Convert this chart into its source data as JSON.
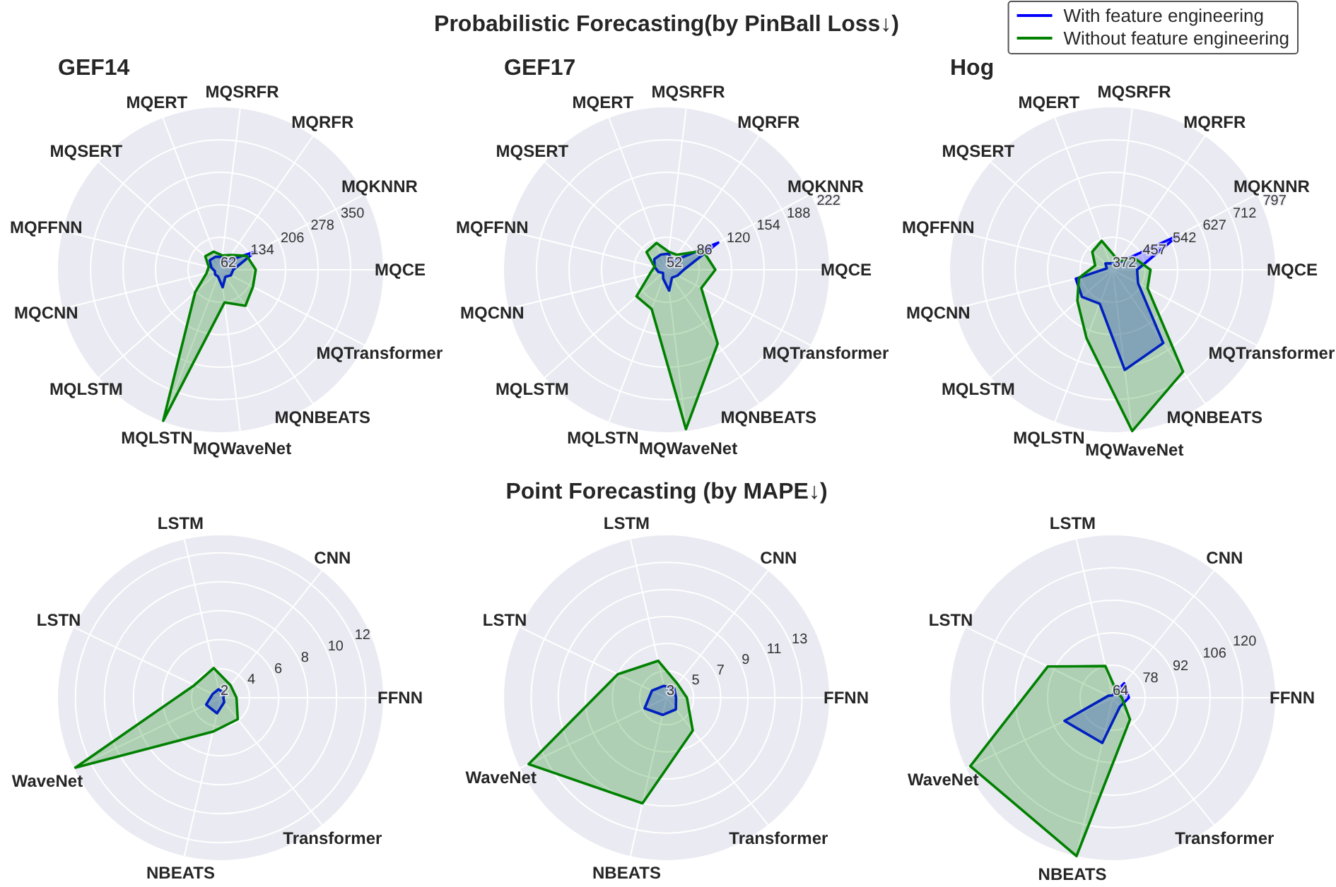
{
  "chart_data": [
    {
      "type": "radar",
      "subtitle": "GEF14",
      "categories": [
        "MQSRFR",
        "MQRFR",
        "MQKNNR",
        "MQCE",
        "MQTransformer",
        "MQNBEATS",
        "MQWaveNet",
        "MQLSTN",
        "MQLSTM",
        "MQCNN",
        "MQFFNN",
        "MQSERT",
        "MQERT"
      ],
      "series": [
        {
          "color": "#0000ff",
          "values": [
            91,
            85,
            150,
            90,
            88,
            81,
            101,
            78,
            78,
            75,
            83,
            94,
            93
          ]
        },
        {
          "color": "#008000",
          "values": [
            94,
            102,
            128,
            140,
            143,
            159,
            135,
            420,
            137,
            94,
            89,
            107,
            105
          ]
        }
      ],
      "ylim": [
        62,
        422
      ],
      "yticks": [
        62,
        134,
        206,
        278,
        350
      ],
      "grid": true
    },
    {
      "type": "radar",
      "title": "Probabilistic Forecasting(by PinBall Loss↓)",
      "subtitle": "GEF17",
      "categories": [
        "MQSRFR",
        "MQRFR",
        "MQKNNR",
        "MQCE",
        "MQTransformer",
        "MQNBEATS",
        "MQWaveNet",
        "MQLSTN",
        "MQLSTM",
        "MQCNN",
        "MQFFNN",
        "MQSERT",
        "MQERT"
      ],
      "series": [
        {
          "color": "#0000ff",
          "values": [
            69,
            63,
            113,
            70,
            65,
            62,
            74,
            62,
            57,
            61,
            65,
            69,
            69
          ]
        },
        {
          "color": "#008000",
          "values": [
            71,
            71,
            95,
            103,
            93,
            146,
            220,
            96,
            94,
            70,
            65,
            80,
            82
          ]
        }
      ],
      "ylim": [
        52,
        222
      ],
      "yticks": [
        52,
        86,
        120,
        154,
        188,
        222
      ],
      "grid": true
    },
    {
      "type": "radar",
      "subtitle": "Hog",
      "categories": [
        "MQSRFR",
        "MQRFR",
        "MQKNNR",
        "MQCE",
        "MQTransformer",
        "MQNBEATS",
        "MQWaveNet",
        "MQLSTN",
        "MQLSTM",
        "MQCNN",
        "MQFFNN",
        "MQSERT",
        "MQERT"
      ],
      "series": [
        {
          "name": "With feature engineering",
          "color": "#0000ff",
          "values": [
            388,
            392,
            566,
            436,
            447,
            605,
            636,
            467,
            479,
            471,
            388,
            397,
            390
          ]
        },
        {
          "name": "Without feature engineering",
          "color": "#008000",
          "values": [
            409,
            400,
            437,
            471,
            475,
            696,
            797,
            564,
            495,
            463,
            419,
            443,
            453
          ]
        }
      ],
      "ylim": [
        372,
        797
      ],
      "yticks": [
        372,
        457,
        542,
        627,
        712,
        797
      ],
      "grid": true,
      "legend": "top right"
    },
    {
      "type": "radar",
      "categories": [
        "CNN",
        "FFNN",
        "Transformer",
        "NBEATS",
        "WaveNet",
        "LSTN",
        "LSTM"
      ],
      "series": [
        {
          "color": "#0000ff",
          "values": [
            2.4,
            2.2,
            2.4,
            3.1,
            3.1,
            2.6,
            2.6
          ]
        },
        {
          "color": "#008000",
          "values": [
            3.1,
            3.1,
            3.9,
            4.4,
            13.1,
            4.0,
            4.1
          ]
        }
      ],
      "ylim": [
        2,
        13.2
      ],
      "yticks": [
        2,
        4,
        6,
        8,
        10,
        12
      ],
      "grid": true
    },
    {
      "type": "radar",
      "title": "Point Forecasting (by MAPE↓)",
      "categories": [
        "CNN",
        "FFNN",
        "Transformer",
        "NBEATS",
        "WaveNet",
        "LSTN",
        "LSTM"
      ],
      "series": [
        {
          "color": "#0000ff",
          "values": [
            3.9,
            3.7,
            4.1,
            4.3,
            4.8,
            4.2,
            3.9
          ]
        },
        {
          "color": "#008000",
          "values": [
            4.3,
            4.5,
            6.1,
            11.0,
            14.3,
            7.0,
            5.8
          ]
        }
      ],
      "ylim": [
        3,
        15
      ],
      "yticks": [
        3,
        5,
        7,
        9,
        11,
        13
      ],
      "grid": true
    },
    {
      "type": "radar",
      "categories": [
        "CNN",
        "FFNN",
        "Transformer",
        "NBEATS",
        "WaveNet",
        "LSTN",
        "LSTM"
      ],
      "series": [
        {
          "color": "#0000ff",
          "values": [
            72,
            71,
            69,
            84,
            87,
            66,
            65
          ]
        },
        {
          "color": "#008000",
          "values": [
            67,
            68,
            76,
            134,
            132,
            95,
            78
          ]
        }
      ],
      "ylim": [
        64,
        134
      ],
      "yticks": [
        64,
        78,
        92,
        106,
        120
      ],
      "grid": true
    }
  ]
}
